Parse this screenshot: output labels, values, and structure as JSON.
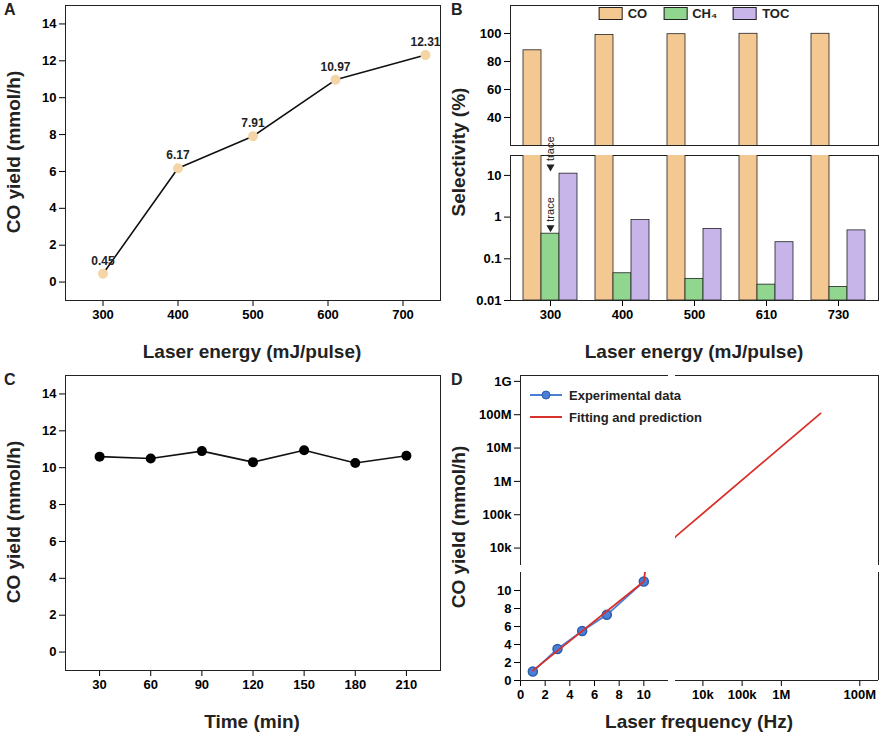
{
  "chart_data": [
    {
      "type": "line",
      "title": "A",
      "x_label": "Laser energy (mJ/pulse)",
      "y_label": "CO yield (mmol/h)",
      "x": [
        300,
        400,
        500,
        610,
        730
      ],
      "values": [
        0.45,
        6.17,
        7.91,
        10.97,
        12.31
      ],
      "xlim": [
        250,
        750
      ],
      "xticks": [
        300,
        400,
        500,
        600,
        700
      ],
      "ylim": [
        -1,
        15
      ],
      "yticks": [
        0,
        2,
        4,
        6,
        8,
        10,
        12,
        14
      ],
      "color": "#f5d5a5",
      "marker": "circle",
      "data_labels": true
    },
    {
      "type": "bar",
      "title": "B",
      "x_label": "Laser energy (mJ/pulse)",
      "y_label": "Selectivity (%)",
      "categories": [
        300,
        400,
        500,
        610,
        730
      ],
      "series": [
        {
          "name": "CO",
          "color": "#f3c991",
          "values": [
            88,
            99,
            99.5,
            99.8,
            99.8
          ]
        },
        {
          "name": "CH₄",
          "color": "#90d68f",
          "values": [
            0.4,
            0.045,
            0.033,
            0.024,
            0.021
          ]
        },
        {
          "name": "TOC",
          "color": "#c7b5ea",
          "values": [
            11,
            0.85,
            0.52,
            0.25,
            0.48
          ]
        }
      ],
      "y_segments": [
        {
          "ylim": [
            0.01,
            30
          ],
          "yticks": [
            0.01,
            0.1,
            1,
            10
          ],
          "log": "y"
        },
        {
          "ylim": [
            20,
            120
          ],
          "yticks": [
            40,
            60,
            80,
            100
          ]
        }
      ],
      "legend": "top",
      "annotations": [
        {
          "text": "trace",
          "category": 300,
          "series": "CH₄"
        }
      ]
    },
    {
      "type": "line",
      "title": "C",
      "x_label": "Time (min)",
      "y_label": "CO yield (mmol/h)",
      "x": [
        30,
        60,
        90,
        120,
        150,
        180,
        210
      ],
      "values": [
        10.6,
        10.5,
        10.9,
        10.3,
        10.95,
        10.25,
        10.65
      ],
      "xlim": [
        10,
        230
      ],
      "xticks": [
        30,
        60,
        90,
        120,
        150,
        180,
        210
      ],
      "ylim": [
        -1,
        15
      ],
      "yticks": [
        0,
        2,
        4,
        6,
        8,
        10,
        12,
        14
      ],
      "color": "#000000",
      "marker": "circle"
    },
    {
      "type": "line",
      "title": "D",
      "x_label": "Laser frequency (Hz)",
      "y_label": "CO yield (mmol/h)",
      "series": [
        {
          "name": "Experimental data",
          "color": "#4a7fd6",
          "marker": "circle",
          "x": [
            1,
            3,
            5,
            7,
            10
          ],
          "values": [
            1.0,
            3.5,
            5.5,
            7.3,
            11.0
          ]
        },
        {
          "name": "Fitting and prediction",
          "color": "#d9302a",
          "x": [
            1,
            10,
            2000,
            10000000
          ],
          "values": [
            1.1,
            11,
            22000,
            110000000
          ]
        }
      ],
      "x_segments": [
        {
          "xlim": [
            0,
            12
          ],
          "xticks": [
            0,
            2,
            4,
            6,
            8,
            10
          ]
        },
        {
          "xlim": [
            2000,
            300000000
          ],
          "log": "x",
          "xticks": [
            {
              "value": 10000,
              "label": "10k"
            },
            {
              "value": 100000,
              "label": "100k"
            },
            {
              "value": 1000000,
              "label": "1M"
            },
            {
              "value": 100000000,
              "label": "100M"
            }
          ]
        }
      ],
      "y_segments": [
        {
          "ylim": [
            0,
            12
          ],
          "yticks": [
            0,
            2,
            4,
            6,
            8,
            10
          ]
        },
        {
          "ylim": [
            3000,
            1500000000
          ],
          "log": "y",
          "yticks": [
            {
              "value": 10000,
              "label": "10k"
            },
            {
              "value": 100000,
              "label": "100k"
            },
            {
              "value": 1000000,
              "label": "1M"
            },
            {
              "value": 10000000,
              "label": "10M"
            },
            {
              "value": 100000000,
              "label": "100M"
            },
            {
              "value": 1000000000,
              "label": "1G"
            }
          ]
        }
      ],
      "legend": "top-left"
    }
  ]
}
